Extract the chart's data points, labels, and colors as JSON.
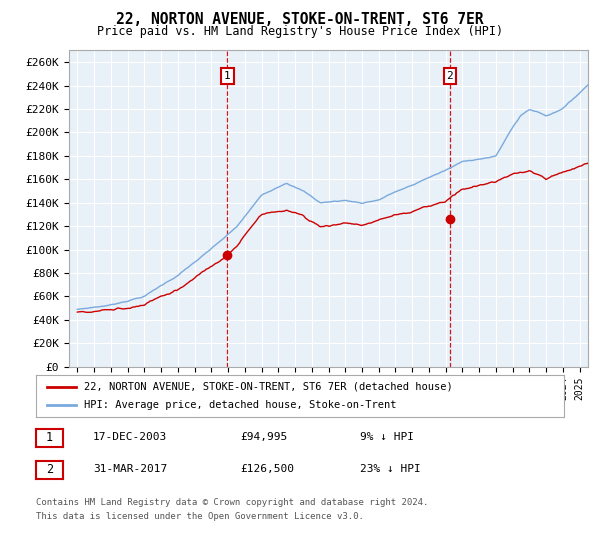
{
  "title": "22, NORTON AVENUE, STOKE-ON-TRENT, ST6 7ER",
  "subtitle": "Price paid vs. HM Land Registry's House Price Index (HPI)",
  "ylim": [
    0,
    270000
  ],
  "yticks": [
    0,
    20000,
    40000,
    60000,
    80000,
    100000,
    120000,
    140000,
    160000,
    180000,
    200000,
    220000,
    240000,
    260000
  ],
  "xlim_start": 1994.5,
  "xlim_end": 2025.5,
  "fig_bg_color": "#ffffff",
  "plot_bg_color": "#e8f0f8",
  "grid_color": "#ffffff",
  "hpi_color": "#7aaadd",
  "price_color": "#cc0000",
  "sale1_date": 2003.96,
  "sale1_price": 94995,
  "sale2_date": 2017.25,
  "sale2_price": 126500,
  "legend_label1": "22, NORTON AVENUE, STOKE-ON-TRENT, ST6 7ER (detached house)",
  "legend_label2": "HPI: Average price, detached house, Stoke-on-Trent",
  "annotation1_label": "1",
  "annotation1_date": "17-DEC-2003",
  "annotation1_price": "£94,995",
  "annotation1_hpi": "9% ↓ HPI",
  "annotation2_label": "2",
  "annotation2_date": "31-MAR-2017",
  "annotation2_price": "£126,500",
  "annotation2_hpi": "23% ↓ HPI",
  "footnote1": "Contains HM Land Registry data © Crown copyright and database right 2024.",
  "footnote2": "This data is licensed under the Open Government Licence v3.0."
}
